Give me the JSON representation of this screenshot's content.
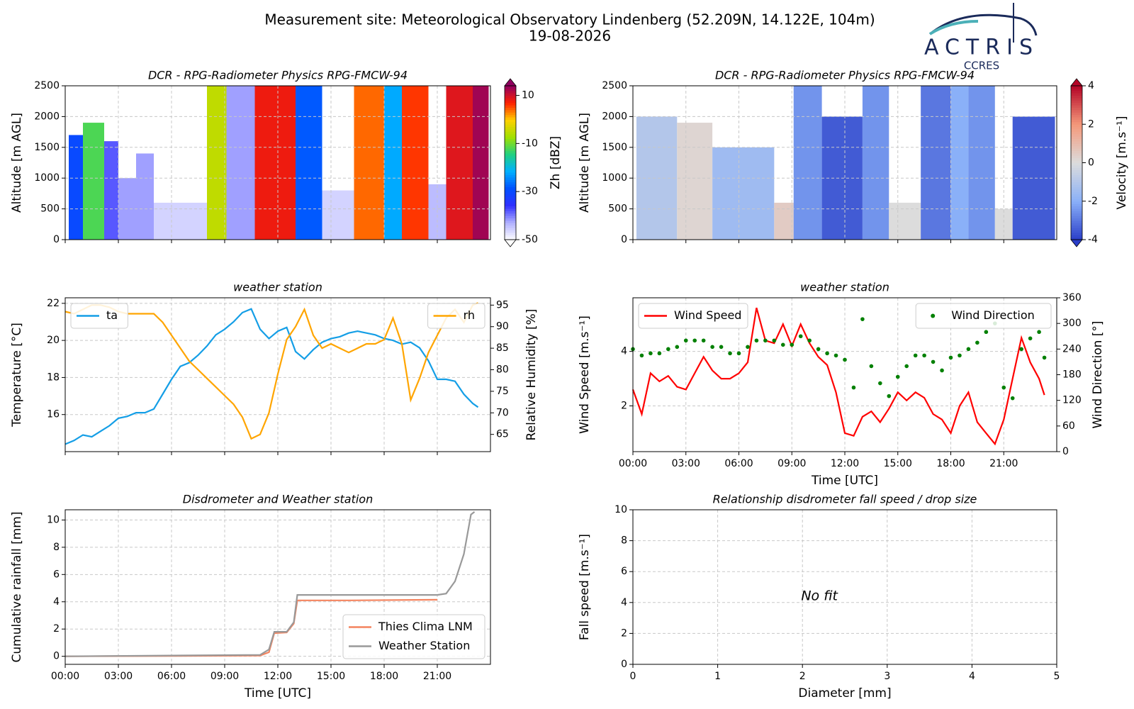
{
  "header": {
    "title": "Measurement site: Meteorological Observatory Lindenberg (52.209N, 14.122E, 104m)",
    "date": "19-08-2026",
    "logo": "ACTRIS",
    "logo_sub": "CCRES"
  },
  "chart_data": [
    {
      "type": "heatmap",
      "title": "DCR - RPG-Radiometer Physics RPG-FMCW-94",
      "ylabel": "Altitude [m AGL]",
      "xlim": [
        0,
        24
      ],
      "xticks": [
        0,
        3,
        6,
        9,
        12,
        15,
        18,
        21
      ],
      "ylim": [
        0,
        2500
      ],
      "yticks": [
        0,
        500,
        1000,
        1500,
        2000,
        2500
      ],
      "grid": true,
      "clabel": "Zh [dBZ]",
      "clim": [
        -50,
        14
      ],
      "cticks": [
        -50,
        -30,
        -10,
        10
      ],
      "colorscale": [
        "#ffffff",
        "#b0b0ff",
        "#3030ff",
        "#0050ff",
        "#00b0ff",
        "#20d080",
        "#a0e000",
        "#ffd000",
        "#ff2000",
        "#900060"
      ],
      "cells": [
        {
          "x0": 0.2,
          "x1": 1.0,
          "top": 1700,
          "value": -30
        },
        {
          "x0": 1.0,
          "x1": 2.2,
          "top": 1900,
          "value": -12
        },
        {
          "x0": 2.2,
          "x1": 3.0,
          "top": 1600,
          "value": -38
        },
        {
          "x0": 3.0,
          "x1": 4.0,
          "top": 1000,
          "value": -42
        },
        {
          "x0": 4.0,
          "x1": 5.0,
          "top": 1400,
          "value": -42
        },
        {
          "x0": 5.0,
          "x1": 8.0,
          "top": 600,
          "value": -46
        },
        {
          "x0": 8.0,
          "x1": 9.1,
          "top": 2500,
          "value": -5
        },
        {
          "x0": 9.1,
          "x1": 10.7,
          "top": 2500,
          "value": -42
        },
        {
          "x0": 10.7,
          "x1": 13.0,
          "top": 2500,
          "value": 8
        },
        {
          "x0": 13.0,
          "x1": 14.5,
          "top": 2500,
          "value": -28
        },
        {
          "x0": 14.5,
          "x1": 16.3,
          "top": 800,
          "value": -46
        },
        {
          "x0": 16.3,
          "x1": 18.0,
          "top": 2500,
          "value": 4
        },
        {
          "x0": 18.0,
          "x1": 19.0,
          "top": 2500,
          "value": -22
        },
        {
          "x0": 19.0,
          "x1": 20.5,
          "top": 2500,
          "value": 6
        },
        {
          "x0": 20.5,
          "x1": 21.5,
          "top": 900,
          "value": -44
        },
        {
          "x0": 21.5,
          "x1": 23.0,
          "top": 2500,
          "value": 9
        },
        {
          "x0": 23.0,
          "x1": 23.9,
          "top": 2500,
          "value": 13
        }
      ]
    },
    {
      "type": "heatmap",
      "title": "DCR - RPG-Radiometer Physics RPG-FMCW-94",
      "ylabel": "Altitude [m AGL]",
      "xlim": [
        0,
        24
      ],
      "xticks": [
        0,
        3,
        6,
        9,
        12,
        15,
        18,
        21
      ],
      "ylim": [
        0,
        2500
      ],
      "yticks": [
        0,
        500,
        1000,
        1500,
        2000,
        2500
      ],
      "grid": true,
      "clabel": "Velocity [m.s⁻¹]",
      "clim": [
        -4,
        4
      ],
      "cticks": [
        -4,
        -2,
        0,
        2,
        4
      ],
      "colorscale": [
        "#2a3ec8",
        "#8ab0f8",
        "#dcdcdc",
        "#f4987a",
        "#b40426"
      ],
      "cells": [
        {
          "x0": 0.2,
          "x1": 2.5,
          "top": 2000,
          "value": -1.0
        },
        {
          "x0": 2.5,
          "x1": 4.5,
          "top": 1900,
          "value": 0.2
        },
        {
          "x0": 4.5,
          "x1": 8.0,
          "top": 1500,
          "value": -1.5
        },
        {
          "x0": 8.0,
          "x1": 9.1,
          "top": 600,
          "value": 0.5
        },
        {
          "x0": 9.1,
          "x1": 10.7,
          "top": 2500,
          "value": -2.5
        },
        {
          "x0": 10.7,
          "x1": 13.0,
          "top": 2000,
          "value": -3.5
        },
        {
          "x0": 13.0,
          "x1": 14.5,
          "top": 2500,
          "value": -2.5
        },
        {
          "x0": 14.5,
          "x1": 16.3,
          "top": 600,
          "value": 0
        },
        {
          "x0": 16.3,
          "x1": 18.0,
          "top": 2500,
          "value": -3
        },
        {
          "x0": 18.0,
          "x1": 19.0,
          "top": 2500,
          "value": -2
        },
        {
          "x0": 19.0,
          "x1": 20.5,
          "top": 2500,
          "value": -2.5
        },
        {
          "x0": 20.5,
          "x1": 21.5,
          "top": 500,
          "value": 0
        },
        {
          "x0": 21.5,
          "x1": 23.9,
          "top": 2000,
          "value": -3.5
        }
      ]
    },
    {
      "type": "line",
      "title": "weather station",
      "ylabel": "Temperature [°C]",
      "y2label": "Relative Humidity [%]",
      "xlim": [
        0,
        24
      ],
      "xticks": [
        0,
        3,
        6,
        9,
        12,
        15,
        18,
        21
      ],
      "ylim": [
        14.0,
        22.3
      ],
      "yticks": [
        16,
        18,
        20,
        22
      ],
      "y2lim": [
        61,
        96.7
      ],
      "y2ticks": [
        65,
        70,
        75,
        80,
        85,
        90,
        95
      ],
      "grid": true,
      "x": [
        0,
        0.5,
        1,
        1.5,
        2,
        2.5,
        3,
        3.5,
        4,
        4.5,
        5,
        5.5,
        6,
        6.5,
        7,
        7.5,
        8,
        8.5,
        9,
        9.5,
        10,
        10.5,
        11,
        11.5,
        12,
        12.5,
        13,
        13.5,
        14,
        14.5,
        15,
        15.5,
        16,
        16.5,
        17,
        17.5,
        18,
        18.5,
        19,
        19.5,
        20,
        20.5,
        21,
        21.5,
        22,
        22.5,
        23,
        23.3
      ],
      "series": [
        {
          "name": "ta",
          "color": "#149ee6",
          "legend": "upper left",
          "style": "line",
          "values": [
            14.4,
            14.6,
            14.9,
            14.8,
            15.1,
            15.4,
            15.8,
            15.9,
            16.1,
            16.1,
            16.3,
            17.1,
            17.9,
            18.6,
            18.8,
            19.2,
            19.7,
            20.3,
            20.6,
            21.0,
            21.5,
            21.7,
            20.6,
            20.1,
            20.5,
            20.7,
            19.4,
            19.0,
            19.5,
            19.9,
            20.1,
            20.2,
            20.4,
            20.5,
            20.4,
            20.3,
            20.1,
            20.0,
            19.8,
            19.9,
            19.6,
            18.9,
            17.9,
            17.9,
            17.8,
            17.1,
            16.6,
            16.4
          ]
        },
        {
          "name": "rh",
          "color": "#ffa500",
          "legend": "upper right",
          "style": "line",
          "axis": "y2",
          "values": [
            93.5,
            93,
            94,
            95,
            95,
            94.5,
            93.5,
            93,
            93,
            93,
            93,
            91,
            88,
            85,
            82,
            80,
            78,
            76,
            74,
            72,
            69,
            64,
            65,
            70,
            79,
            87,
            90,
            94,
            88,
            85,
            86,
            85,
            84,
            85,
            86,
            86,
            87,
            92,
            86,
            73,
            78,
            84,
            88,
            92,
            94,
            91,
            95,
            95.5
          ]
        }
      ]
    },
    {
      "type": "line",
      "title": "weather station",
      "ylabel": "Wind Speed [m.s⁻¹]",
      "y2label": "Wind Direction [°]",
      "xlabel": "Time [UTC]",
      "xlim": [
        0,
        24
      ],
      "xticks": [
        {
          "value": 0,
          "label": "00:00"
        },
        {
          "value": 3,
          "label": "03:00"
        },
        {
          "value": 6,
          "label": "06:00"
        },
        {
          "value": 9,
          "label": "09:00"
        },
        {
          "value": 12,
          "label": "12:00"
        },
        {
          "value": 15,
          "label": "15:00"
        },
        {
          "value": 18,
          "label": "18:00"
        },
        {
          "value": 21,
          "label": "21:00"
        }
      ],
      "ylim": [
        0.32,
        5.97
      ],
      "yticks": [
        2,
        4
      ],
      "y2lim": [
        0,
        360
      ],
      "y2ticks": [
        0,
        60,
        120,
        180,
        240,
        300,
        360
      ],
      "grid": true,
      "x": [
        0,
        0.5,
        1,
        1.5,
        2,
        2.5,
        3,
        3.5,
        4,
        4.5,
        5,
        5.5,
        6,
        6.5,
        7,
        7.5,
        8,
        8.5,
        9,
        9.5,
        10,
        10.5,
        11,
        11.5,
        12,
        12.5,
        13,
        13.5,
        14,
        14.5,
        15,
        15.5,
        16,
        16.5,
        17,
        17.5,
        18,
        18.5,
        19,
        19.5,
        20,
        20.5,
        21,
        21.5,
        22,
        22.5,
        23,
        23.3
      ],
      "series": [
        {
          "name": "Wind Speed",
          "color": "#ff0000",
          "legend": "upper left",
          "style": "line",
          "values": [
            2.6,
            1.7,
            3.2,
            2.9,
            3.1,
            2.7,
            2.6,
            3.2,
            3.8,
            3.3,
            3.0,
            3.0,
            3.2,
            3.6,
            5.6,
            4.4,
            4.3,
            5.0,
            4.2,
            5.0,
            4.3,
            3.8,
            3.5,
            2.5,
            1.0,
            0.9,
            1.6,
            1.8,
            1.4,
            1.9,
            2.5,
            2.2,
            2.5,
            2.3,
            1.7,
            1.5,
            1.0,
            2.0,
            2.5,
            1.4,
            1.0,
            0.6,
            1.5,
            3.0,
            4.5,
            3.6,
            3.0,
            2.4
          ]
        },
        {
          "name": "Wind Direction",
          "color": "#008000",
          "legend": "upper right",
          "style": "dots",
          "axis": "y2",
          "values": [
            240,
            225,
            230,
            230,
            240,
            245,
            260,
            260,
            260,
            245,
            245,
            230,
            230,
            245,
            260,
            260,
            260,
            250,
            250,
            270,
            260,
            240,
            230,
            225,
            215,
            150,
            310,
            200,
            160,
            130,
            175,
            200,
            225,
            225,
            210,
            190,
            220,
            225,
            240,
            255,
            280,
            300,
            150,
            125,
            240,
            265,
            280,
            220
          ]
        }
      ]
    },
    {
      "type": "line",
      "title": "Disdrometer and Weather station",
      "ylabel": "Cumulative rainfall [mm]",
      "xlabel": "Time [UTC]",
      "xlim": [
        0,
        24
      ],
      "xticks": [
        {
          "value": 0,
          "label": "00:00"
        },
        {
          "value": 3,
          "label": "03:00"
        },
        {
          "value": 6,
          "label": "06:00"
        },
        {
          "value": 9,
          "label": "09:00"
        },
        {
          "value": 12,
          "label": "12:00"
        },
        {
          "value": 15,
          "label": "15:00"
        },
        {
          "value": 18,
          "label": "18:00"
        },
        {
          "value": 21,
          "label": "21:00"
        }
      ],
      "ylim": [
        -0.59,
        10.75
      ],
      "yticks": [
        0,
        2,
        4,
        6,
        8,
        10
      ],
      "grid": true,
      "series": [
        {
          "name": "Thies Clima LNM",
          "color": "#f4845f",
          "legend": "lower right",
          "style": "line",
          "x": [
            0,
            11,
            11.5,
            11.8,
            12.5,
            12.9,
            13.1,
            16,
            21
          ],
          "values": [
            0,
            0.05,
            0.3,
            1.7,
            1.75,
            2.4,
            4.1,
            4.1,
            4.15
          ]
        },
        {
          "name": "Weather Station",
          "color": "#999999",
          "legend": "lower right",
          "style": "line",
          "x": [
            0,
            11,
            11.5,
            11.8,
            12.5,
            12.9,
            13.1,
            21,
            21.5,
            22,
            22.5,
            22.9,
            23.1
          ],
          "values": [
            0,
            0.1,
            0.5,
            1.8,
            1.8,
            2.5,
            4.5,
            4.5,
            4.6,
            5.5,
            7.5,
            10.4,
            10.6
          ]
        }
      ]
    },
    {
      "type": "scatter",
      "title": "Relationship disdrometer fall speed / drop size",
      "ylabel": "Fall speed [m.s⁻¹]",
      "xlabel": "Diameter [mm]",
      "xlim": [
        0,
        5
      ],
      "xticks": [
        0,
        1,
        2,
        3,
        4,
        5
      ],
      "ylim": [
        0,
        10
      ],
      "yticks": [
        0,
        2,
        4,
        6,
        8,
        10
      ],
      "grid": true,
      "annotation": "No fit",
      "series": []
    }
  ]
}
